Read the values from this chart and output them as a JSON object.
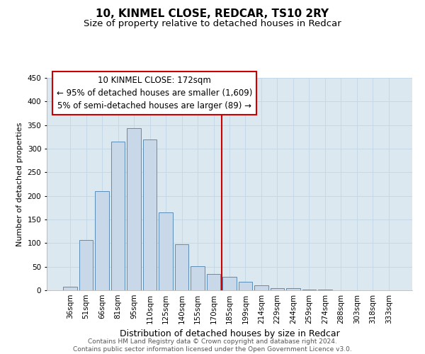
{
  "title": "10, KINMEL CLOSE, REDCAR, TS10 2RY",
  "subtitle": "Size of property relative to detached houses in Redcar",
  "xlabel": "Distribution of detached houses by size in Redcar",
  "ylabel": "Number of detached properties",
  "bar_labels": [
    "36sqm",
    "51sqm",
    "66sqm",
    "81sqm",
    "95sqm",
    "110sqm",
    "125sqm",
    "140sqm",
    "155sqm",
    "170sqm",
    "185sqm",
    "199sqm",
    "214sqm",
    "229sqm",
    "244sqm",
    "259sqm",
    "274sqm",
    "288sqm",
    "303sqm",
    "318sqm",
    "333sqm"
  ],
  "bar_values": [
    7,
    106,
    210,
    315,
    343,
    319,
    165,
    97,
    51,
    35,
    28,
    18,
    10,
    5,
    4,
    1,
    1,
    0,
    0,
    0,
    0
  ],
  "bar_color": "#c8d8e8",
  "bar_edge_color": "#5b8db8",
  "vline_x": 9.5,
  "vline_color": "#cc0000",
  "annotation_box_text": "10 KINMEL CLOSE: 172sqm\n← 95% of detached houses are smaller (1,609)\n5% of semi-detached houses are larger (89) →",
  "annotation_box_edge_color": "#cc0000",
  "ylim": [
    0,
    450
  ],
  "yticks": [
    0,
    50,
    100,
    150,
    200,
    250,
    300,
    350,
    400,
    450
  ],
  "grid_color": "#c5d8e8",
  "background_color": "#dce8f0",
  "footnote": "Contains HM Land Registry data © Crown copyright and database right 2024.\nContains public sector information licensed under the Open Government Licence v3.0.",
  "title_fontsize": 11,
  "subtitle_fontsize": 9.5,
  "xlabel_fontsize": 9,
  "ylabel_fontsize": 8,
  "tick_fontsize": 7.5,
  "annotation_fontsize": 8.5,
  "footnote_fontsize": 6.5
}
